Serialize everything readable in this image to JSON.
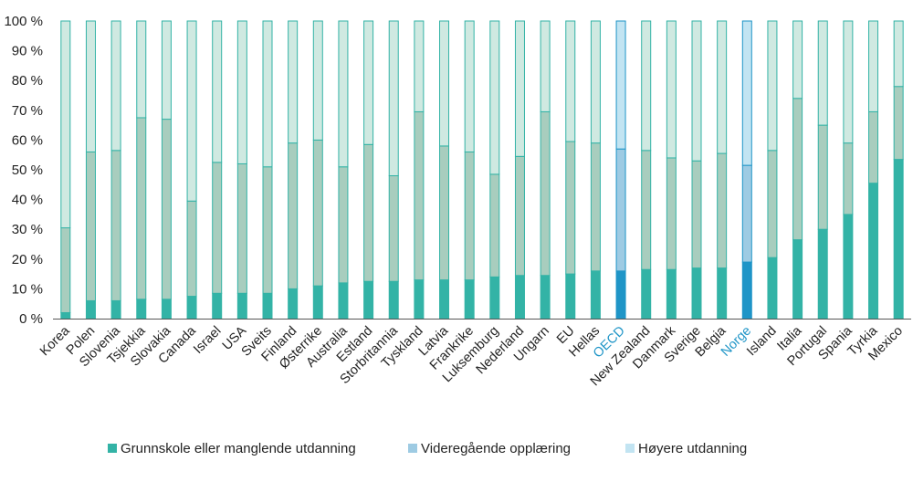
{
  "chart_data": {
    "type": "bar",
    "stacked": true,
    "title": "",
    "xlabel": "",
    "ylabel": "",
    "ylim": [
      0,
      100
    ],
    "y_ticks": [
      "0 %",
      "10 %",
      "20 %",
      "30 %",
      "40 %",
      "50 %",
      "60 %",
      "70 %",
      "80 %",
      "90 %",
      "100 %"
    ],
    "grid": false,
    "legend_position": "bottom",
    "categories": [
      "Korea",
      "Polen",
      "Slovenia",
      "Tsjekkia",
      "Slovakia",
      "Canada",
      "Israel",
      "USA",
      "Sveits",
      "Finland",
      "Østerrike",
      "Australia",
      "Estland",
      "Storbritannia",
      "Tyskland",
      "Latvia",
      "Frankrike",
      "Luksemburg",
      "Nederland",
      "Ungarn",
      "EU",
      "Hellas",
      "OECD",
      "New Zealand",
      "Danmark",
      "Sverige",
      "Belgia",
      "Norge",
      "Island",
      "Italia",
      "Portugal",
      "Spania",
      "Tyrkia",
      "Mexico"
    ],
    "highlighted_categories": [
      "OECD",
      "Norge"
    ],
    "series": [
      {
        "name": "Grunnskole eller manglende utdanning",
        "values": [
          2,
          6,
          6,
          6.5,
          6.5,
          7.5,
          8.5,
          8.5,
          8.5,
          10,
          11,
          12,
          12.5,
          12.5,
          13,
          13,
          13,
          14,
          14.5,
          14.5,
          15,
          16,
          16,
          16.5,
          16.5,
          17,
          17,
          19,
          20.5,
          26.5,
          30,
          35,
          45.5,
          53.5
        ]
      },
      {
        "name": "Videregående opplæring",
        "values": [
          28.5,
          50,
          50.5,
          61,
          60.5,
          32,
          44,
          43.5,
          42.5,
          49,
          49,
          39,
          46,
          35.5,
          56.5,
          45,
          43,
          34.5,
          40,
          55,
          44.5,
          43,
          41,
          40,
          37.5,
          36,
          38.5,
          32.5,
          36,
          47.5,
          35,
          24,
          24,
          24.5
        ]
      },
      {
        "name": "Høyere utdanning",
        "values": [
          69.5,
          44,
          43.5,
          32.5,
          33,
          60.5,
          47.5,
          48,
          49,
          41,
          40,
          49,
          41.5,
          52,
          30.5,
          42,
          44,
          51.5,
          45.5,
          30.5,
          40.5,
          41,
          43,
          43.5,
          46,
          47,
          44.5,
          48.5,
          43.5,
          26,
          35,
          41,
          30.5,
          22
        ]
      }
    ],
    "colors": {
      "normal": [
        "#33b3a6",
        "#a8cdbe",
        "#cfe9e1"
      ],
      "highlight": [
        "#1f95c7",
        "#9ecbe3",
        "#c2e4f2"
      ],
      "legend": [
        "#33b3a6",
        "#9ecbe3",
        "#c2e4f2"
      ],
      "bar_edge_normal": "#33b3a6",
      "bar_edge_highlight": "#1f95c7",
      "highlight_label": "#1f95c7",
      "axis": "#555555"
    }
  }
}
